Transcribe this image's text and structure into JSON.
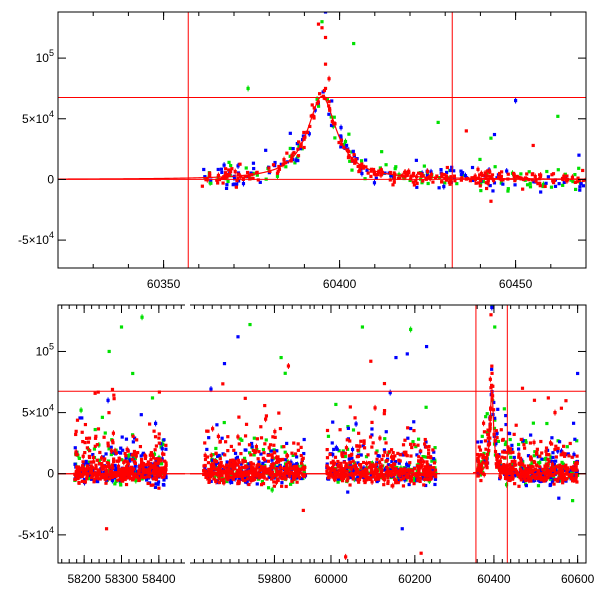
{
  "chart_data": [
    {
      "type": "scatter",
      "title": "",
      "xlabel": "",
      "ylabel": "",
      "xlim": [
        60320,
        60470
      ],
      "ylim": [
        -73000,
        138000
      ],
      "grid": false,
      "xticks": [
        {
          "value": 60350,
          "label": "60350"
        },
        {
          "value": 60400,
          "label": "60400"
        },
        {
          "value": 60450,
          "label": "60450"
        }
      ],
      "yticks": [
        {
          "value": 100000,
          "label": "10",
          "sup": "5"
        },
        {
          "value": 50000,
          "label": "5×10",
          "sup": "4"
        },
        {
          "value": 0,
          "label": "0",
          "sup": ""
        },
        {
          "value": -50000,
          "label": "-5×10",
          "sup": "4"
        }
      ],
      "colors": {
        "green": "#00e000",
        "blue": "#0000ff",
        "red": "#ff0000",
        "lines": "#ff0000"
      },
      "reference_lines": {
        "horizontal": [
          0,
          67500
        ],
        "vertical": [
          60357,
          60432
        ]
      },
      "model_curve": {
        "color": "#ff0000",
        "baseline": 0,
        "peak_x": 60395,
        "peak_y": 68500,
        "width_days": 5
      },
      "outliers": {
        "green": [
          [
            60374,
            75000
          ],
          [
            60395,
            130000
          ],
          [
            60404,
            112000
          ],
          [
            60428,
            47000
          ],
          [
            60462,
            52000
          ],
          [
            60443,
            34000
          ]
        ],
        "blue": [
          [
            60396,
            138000
          ],
          [
            60450,
            65000
          ],
          [
            60444,
            37000
          ],
          [
            60386,
            38000
          ],
          [
            60379,
            24000
          ],
          [
            60468,
            20000
          ]
        ],
        "red": [
          [
            60394,
            128000
          ],
          [
            60395,
            125000
          ],
          [
            60396,
            117000
          ],
          [
            60396,
            95000
          ],
          [
            60397,
            83000
          ],
          [
            60396,
            75000
          ],
          [
            60443,
            -18000
          ],
          [
            60452,
            -8000
          ],
          [
            60436,
            40000
          ],
          [
            60455,
            28000
          ]
        ]
      }
    },
    {
      "type": "scatter",
      "title": "",
      "xlabel": "",
      "ylabel": "",
      "xlim": [
        58130,
        60620
      ],
      "ylim": [
        -73000,
        138000
      ],
      "grid": false,
      "xticks": [
        {
          "value": 58200,
          "label": "58200"
        },
        {
          "value": 58300,
          "label": "58300"
        },
        {
          "value": 58400,
          "label": "58400"
        },
        {
          "value": 59800,
          "label": "59800"
        },
        {
          "value": 60000,
          "label": "60000"
        },
        {
          "value": 60200,
          "label": "60200"
        },
        {
          "value": 60400,
          "label": "60400"
        },
        {
          "value": 60600,
          "label": "60600"
        }
      ],
      "yticks": [
        {
          "value": 100000,
          "label": "10",
          "sup": "5"
        },
        {
          "value": 50000,
          "label": "5×10",
          "sup": "4"
        },
        {
          "value": 0,
          "label": "0",
          "sup": ""
        },
        {
          "value": -50000,
          "label": "-5×10",
          "sup": "4"
        }
      ],
      "colors": {
        "green": "#00e000",
        "blue": "#0000ff",
        "red": "#ff0000",
        "lines": "#ff0000"
      },
      "reference_lines": {
        "horizontal": [
          0,
          67500
        ],
        "vertical": [
          60357,
          60432
        ]
      },
      "model_curve": {
        "color": "#ff0000",
        "baseline": 0,
        "peak_x": 60395,
        "peak_y": 68500,
        "width_days": 5
      },
      "outliers": {
        "green": [
          [
            58300,
            120000
          ],
          [
            58355,
            128000
          ],
          [
            58267,
            100000
          ],
          [
            58330,
            82000
          ],
          [
            58383,
            62000
          ],
          [
            59745,
            122000
          ],
          [
            59815,
            95000
          ],
          [
            60075,
            120000
          ],
          [
            60190,
            118000
          ],
          [
            60395,
            138000
          ],
          [
            60402,
            120000
          ],
          [
            60588,
            -22000
          ]
        ],
        "blue": [
          [
            59718,
            112000
          ],
          [
            60182,
            98000
          ],
          [
            60228,
            104000
          ],
          [
            60155,
            95000
          ],
          [
            60395,
            136000
          ],
          [
            60600,
            82000
          ],
          [
            60040,
            -15000
          ],
          [
            60170,
            -45000
          ],
          [
            60555,
            -20000
          ]
        ],
        "red": [
          [
            58260,
            -45000
          ],
          [
            59865,
            -30000
          ],
          [
            60035,
            -68000
          ],
          [
            60215,
            -65000
          ],
          [
            60095,
            92000
          ],
          [
            60393,
            130000
          ],
          [
            60530,
            62000
          ],
          [
            60395,
            88000
          ]
        ]
      }
    }
  ]
}
